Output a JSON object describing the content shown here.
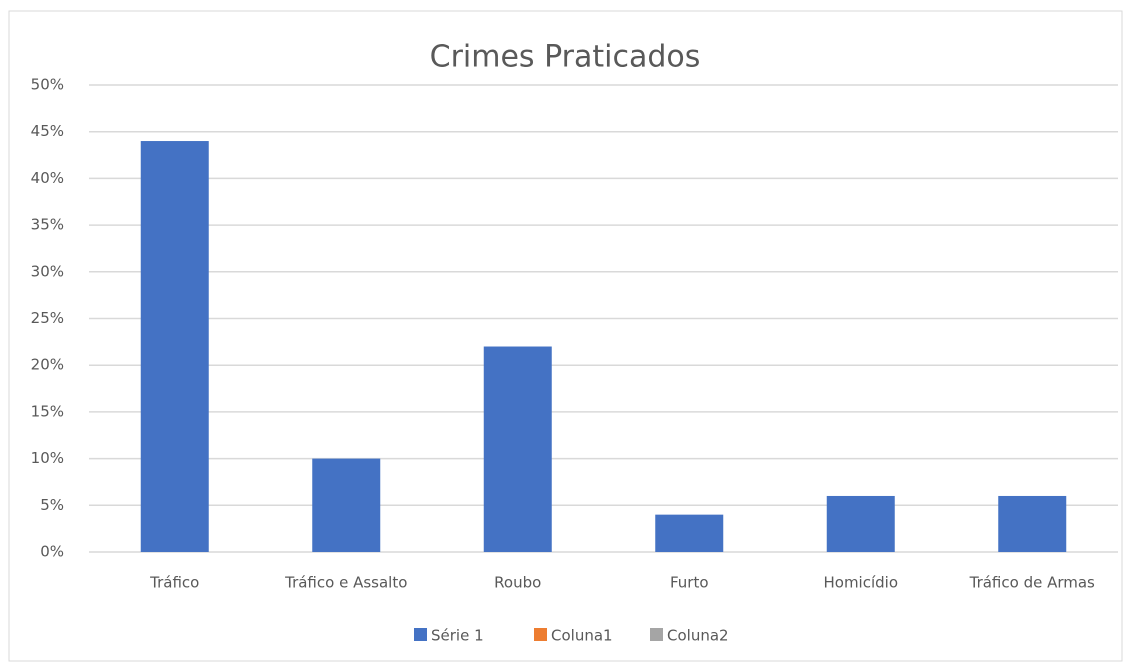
{
  "chart_data": {
    "type": "bar",
    "title": "Crimes Praticados",
    "categories": [
      "Tráfico",
      "Tráfico e Assalto",
      "Roubo",
      "Furto",
      "Homicídio",
      "Tráfico de Armas"
    ],
    "series": [
      {
        "name": "Série 1",
        "color": "#4472c4",
        "values": [
          44,
          10,
          22,
          4,
          6,
          6
        ]
      },
      {
        "name": "Coluna1",
        "color": "#ed7d31",
        "values": [
          null,
          null,
          null,
          null,
          null,
          null
        ]
      },
      {
        "name": "Coluna2",
        "color": "#a5a5a5",
        "values": [
          null,
          null,
          null,
          null,
          null,
          null
        ]
      }
    ],
    "ylim": [
      0,
      50
    ],
    "yticks": [
      {
        "value": 0,
        "label": "0%"
      },
      {
        "value": 5,
        "label": "5%"
      },
      {
        "value": 10,
        "label": "10%"
      },
      {
        "value": 15,
        "label": "15%"
      },
      {
        "value": 20,
        "label": "20%"
      },
      {
        "value": 25,
        "label": "25%"
      },
      {
        "value": 30,
        "label": "30%"
      },
      {
        "value": 35,
        "label": "35%"
      },
      {
        "value": 40,
        "label": "40%"
      },
      {
        "value": 45,
        "label": "45%"
      },
      {
        "value": 50,
        "label": "50%"
      }
    ],
    "grid": true,
    "legend": "bottom"
  }
}
